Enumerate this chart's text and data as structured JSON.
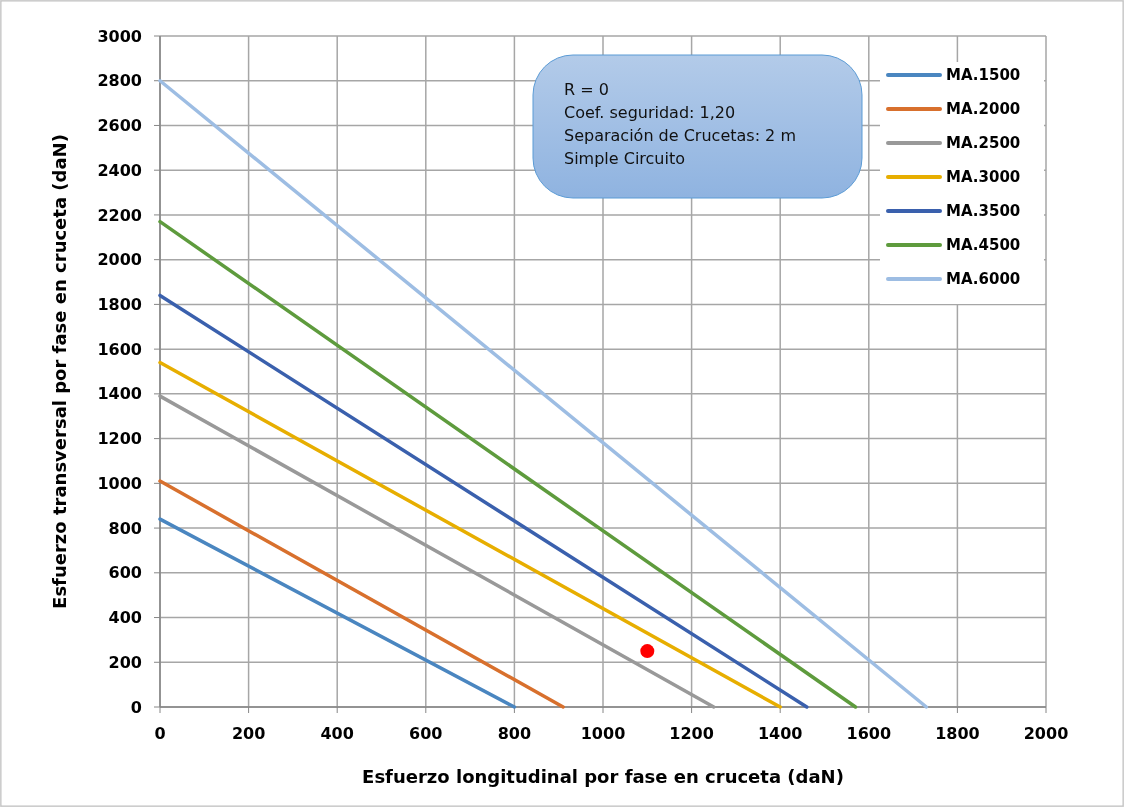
{
  "chart_data": {
    "type": "line",
    "xlabel": "Esfuerzo longitudinal por fase en cruceta (daN)",
    "ylabel": "Esfuerzo transversal por fase en cruceta (daN)",
    "series": [
      {
        "name": "MA.1500",
        "color": "#4a86c0",
        "x": [
          0,
          800
        ],
        "values": [
          840,
          0
        ]
      },
      {
        "name": "MA.2000",
        "color": "#d8702d",
        "x": [
          0,
          910
        ],
        "values": [
          1010,
          0
        ]
      },
      {
        "name": "MA.2500",
        "color": "#999999",
        "x": [
          0,
          1250
        ],
        "values": [
          1390,
          0
        ]
      },
      {
        "name": "MA.3000",
        "color": "#e7ae00",
        "x": [
          0,
          1400
        ],
        "values": [
          1540,
          0
        ]
      },
      {
        "name": "MA.3500",
        "color": "#3a60ad",
        "x": [
          0,
          1460
        ],
        "values": [
          1840,
          0
        ]
      },
      {
        "name": "MA.4500",
        "color": "#5e9b3d",
        "x": [
          0,
          1570
        ],
        "values": [
          2170,
          0
        ]
      },
      {
        "name": "MA.6000",
        "color": "#9dbde3",
        "x": [
          0,
          1730
        ],
        "values": [
          2800,
          0
        ]
      },
      {
        "type": "scatter",
        "color": "#ff0000",
        "x": [
          1100
        ],
        "values": [
          250
        ],
        "marker": "circle"
      }
    ],
    "xlim": [
      0,
      2000
    ],
    "xticks": [
      0,
      200,
      400,
      600,
      800,
      1000,
      1200,
      1400,
      1600,
      1800,
      2000
    ],
    "ylim": [
      0,
      3000
    ],
    "yticks": [
      0,
      200,
      400,
      600,
      800,
      1000,
      1200,
      1400,
      1600,
      1800,
      2000,
      2200,
      2400,
      2600,
      2800,
      3000
    ],
    "grid": true,
    "legend": "top right",
    "marker": "none",
    "line_style": "solid",
    "annotations": [
      "R = 0",
      "Coef. seguridad: 1,20",
      "Separación de Crucetas: 2 m",
      "Simple Circuito"
    ]
  }
}
